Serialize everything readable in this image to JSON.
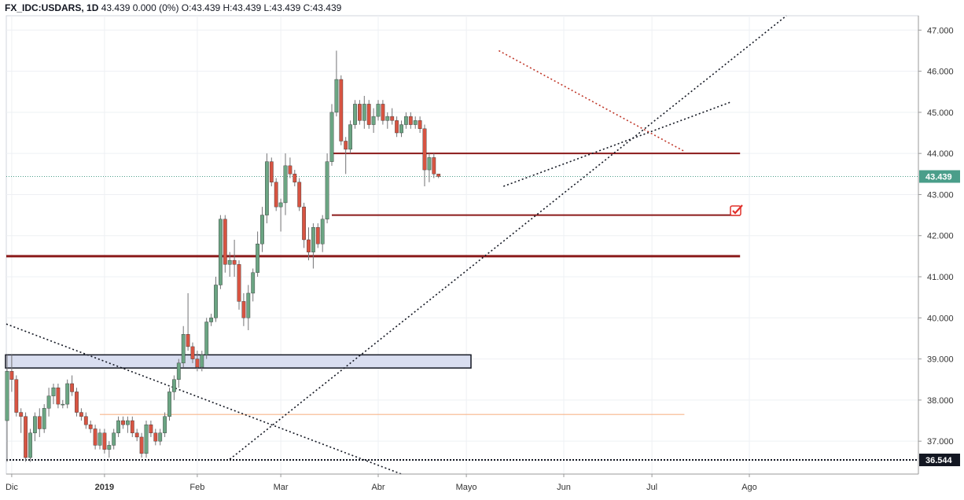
{
  "header": {
    "symbol": "FX_IDC:USDARS",
    "interval": "1D",
    "last": "43.439",
    "change": "0.000 (0%)",
    "ohlc": "O:43.439 H:43.439 L:43.439 C:43.439"
  },
  "colors": {
    "up": "#6ba583",
    "down": "#d75442",
    "wick": "#737375",
    "level": "#8b1a1a",
    "box_fill": "#d9def0",
    "last_label": "#4a9e8a",
    "low_label": "#131722",
    "orange_line": "#f7b58c"
  },
  "chart_data": {
    "type": "candlestick",
    "ylim": [
      36.2,
      47.35
    ],
    "y_ticks": [
      "37.000",
      "38.000",
      "39.000",
      "40.000",
      "41.000",
      "42.000",
      "43.000",
      "44.000",
      "45.000",
      "46.000",
      "47.000"
    ],
    "x_labels": [
      {
        "text": "Dic",
        "x": 1,
        "bold": false
      },
      {
        "text": "2019",
        "x": 21,
        "bold": true
      },
      {
        "text": "Feb",
        "x": 41,
        "bold": false
      },
      {
        "text": "Mar",
        "x": 59,
        "bold": false
      },
      {
        "text": "Abr",
        "x": 80,
        "bold": false
      },
      {
        "text": "Mayo",
        "x": 99,
        "bold": false
      },
      {
        "text": "Jun",
        "x": 120,
        "bold": false
      },
      {
        "text": "Jul",
        "x": 139,
        "bold": false
      },
      {
        "text": "Ago",
        "x": 160,
        "bold": false
      }
    ],
    "last_price": "43.439",
    "low_level": "36.544",
    "levels": [
      44.0,
      42.5,
      41.5
    ],
    "support_box": [
      38.78,
      39.1
    ],
    "candles": [
      [
        37.5,
        39.1,
        36.5,
        38.7
      ],
      [
        38.7,
        39.1,
        38.2,
        38.5
      ],
      [
        38.5,
        38.6,
        37.6,
        37.7
      ],
      [
        37.7,
        37.8,
        37.2,
        37.6
      ],
      [
        37.6,
        37.7,
        36.5,
        36.6
      ],
      [
        36.6,
        37.3,
        36.5,
        37.2
      ],
      [
        37.2,
        37.7,
        37.0,
        37.6
      ],
      [
        37.6,
        37.8,
        37.1,
        37.3
      ],
      [
        37.3,
        37.9,
        37.2,
        37.8
      ],
      [
        37.8,
        38.3,
        37.6,
        38.1
      ],
      [
        38.1,
        38.4,
        37.9,
        38.3
      ],
      [
        38.3,
        38.4,
        37.8,
        37.9
      ],
      [
        37.9,
        38.0,
        37.8,
        37.9
      ],
      [
        37.9,
        38.5,
        37.8,
        38.4
      ],
      [
        38.4,
        38.6,
        38.1,
        38.2
      ],
      [
        38.2,
        38.3,
        37.6,
        37.7
      ],
      [
        37.7,
        37.8,
        37.5,
        37.6
      ],
      [
        37.6,
        37.7,
        37.3,
        37.4
      ],
      [
        37.4,
        37.5,
        37.2,
        37.3
      ],
      [
        37.3,
        37.4,
        36.8,
        36.9
      ],
      [
        36.9,
        37.3,
        36.8,
        37.2
      ],
      [
        37.2,
        37.3,
        36.7,
        36.8
      ],
      [
        36.8,
        37.0,
        36.6,
        36.9
      ],
      [
        36.9,
        37.3,
        36.8,
        37.2
      ],
      [
        37.2,
        37.6,
        37.1,
        37.5
      ],
      [
        37.5,
        37.6,
        37.3,
        37.4
      ],
      [
        37.4,
        37.6,
        37.2,
        37.5
      ],
      [
        37.5,
        37.6,
        37.1,
        37.2
      ],
      [
        37.2,
        37.3,
        37.0,
        37.1
      ],
      [
        37.1,
        37.2,
        36.6,
        36.7
      ],
      [
        36.7,
        37.5,
        36.6,
        37.4
      ],
      [
        37.4,
        37.5,
        37.1,
        37.2
      ],
      [
        37.2,
        37.3,
        36.9,
        37.0
      ],
      [
        37.0,
        37.3,
        36.9,
        37.2
      ],
      [
        37.2,
        37.7,
        37.1,
        37.6
      ],
      [
        37.6,
        38.3,
        37.5,
        38.2
      ],
      [
        38.2,
        38.6,
        38.0,
        38.5
      ],
      [
        38.5,
        39.0,
        38.3,
        38.9
      ],
      [
        38.9,
        39.8,
        38.8,
        39.6
      ],
      [
        39.6,
        40.6,
        39.2,
        39.3
      ],
      [
        39.3,
        39.4,
        38.9,
        39.0
      ],
      [
        39.0,
        39.2,
        38.7,
        38.8
      ],
      [
        38.8,
        39.2,
        38.7,
        39.1
      ],
      [
        39.1,
        40.0,
        39.0,
        39.9
      ],
      [
        39.9,
        40.1,
        39.8,
        40.0
      ],
      [
        40.0,
        41.0,
        39.9,
        40.8
      ],
      [
        40.8,
        42.5,
        40.7,
        42.4
      ],
      [
        42.4,
        42.5,
        41.1,
        41.3
      ],
      [
        41.3,
        41.6,
        41.0,
        41.4
      ],
      [
        41.4,
        41.9,
        41.0,
        41.3
      ],
      [
        41.3,
        41.4,
        40.2,
        40.4
      ],
      [
        40.4,
        40.6,
        39.8,
        40.0
      ],
      [
        40.0,
        40.8,
        39.7,
        40.6
      ],
      [
        40.6,
        41.2,
        40.4,
        41.1
      ],
      [
        41.1,
        42.1,
        41.0,
        41.8
      ],
      [
        41.8,
        42.7,
        41.6,
        42.5
      ],
      [
        42.5,
        44.0,
        42.3,
        43.8
      ],
      [
        43.8,
        43.9,
        43.2,
        43.3
      ],
      [
        43.3,
        43.4,
        42.6,
        42.7
      ],
      [
        42.7,
        42.9,
        42.1,
        42.8
      ],
      [
        42.8,
        44.0,
        42.5,
        43.7
      ],
      [
        43.7,
        43.9,
        43.4,
        43.5
      ],
      [
        43.5,
        43.6,
        43.2,
        43.3
      ],
      [
        43.3,
        43.4,
        42.6,
        42.7
      ],
      [
        42.7,
        42.8,
        41.7,
        41.9
      ],
      [
        41.9,
        42.2,
        41.4,
        41.6
      ],
      [
        41.6,
        42.3,
        41.2,
        42.2
      ],
      [
        42.2,
        42.3,
        41.7,
        41.8
      ],
      [
        41.8,
        42.5,
        41.6,
        42.4
      ],
      [
        42.4,
        44.0,
        42.3,
        43.8
      ],
      [
        43.8,
        45.2,
        43.7,
        45.0
      ],
      [
        45.0,
        46.5,
        44.9,
        45.8
      ],
      [
        45.8,
        45.9,
        44.2,
        44.3
      ],
      [
        44.3,
        44.4,
        43.5,
        44.1
      ],
      [
        44.1,
        44.8,
        44.0,
        44.7
      ],
      [
        44.7,
        45.3,
        44.6,
        45.2
      ],
      [
        45.2,
        45.3,
        44.7,
        44.8
      ],
      [
        44.8,
        45.4,
        44.6,
        45.2
      ],
      [
        45.2,
        45.3,
        44.6,
        44.7
      ],
      [
        44.7,
        45.1,
        44.5,
        44.9
      ],
      [
        44.9,
        45.3,
        44.8,
        45.2
      ],
      [
        45.2,
        45.3,
        44.7,
        44.8
      ],
      [
        44.8,
        45.0,
        44.6,
        44.9
      ],
      [
        44.9,
        45.1,
        44.7,
        44.8
      ],
      [
        44.8,
        44.9,
        44.4,
        44.5
      ],
      [
        44.5,
        44.8,
        44.4,
        44.7
      ],
      [
        44.7,
        45.0,
        44.6,
        44.9
      ],
      [
        44.9,
        45.0,
        44.6,
        44.7
      ],
      [
        44.7,
        44.9,
        44.6,
        44.8
      ],
      [
        44.8,
        44.9,
        44.5,
        44.6
      ],
      [
        44.6,
        44.7,
        43.2,
        43.6
      ],
      [
        43.6,
        44.0,
        43.3,
        43.9
      ],
      [
        43.9,
        44.0,
        43.4,
        43.5
      ],
      [
        43.5,
        43.5,
        43.4,
        43.439
      ]
    ]
  }
}
